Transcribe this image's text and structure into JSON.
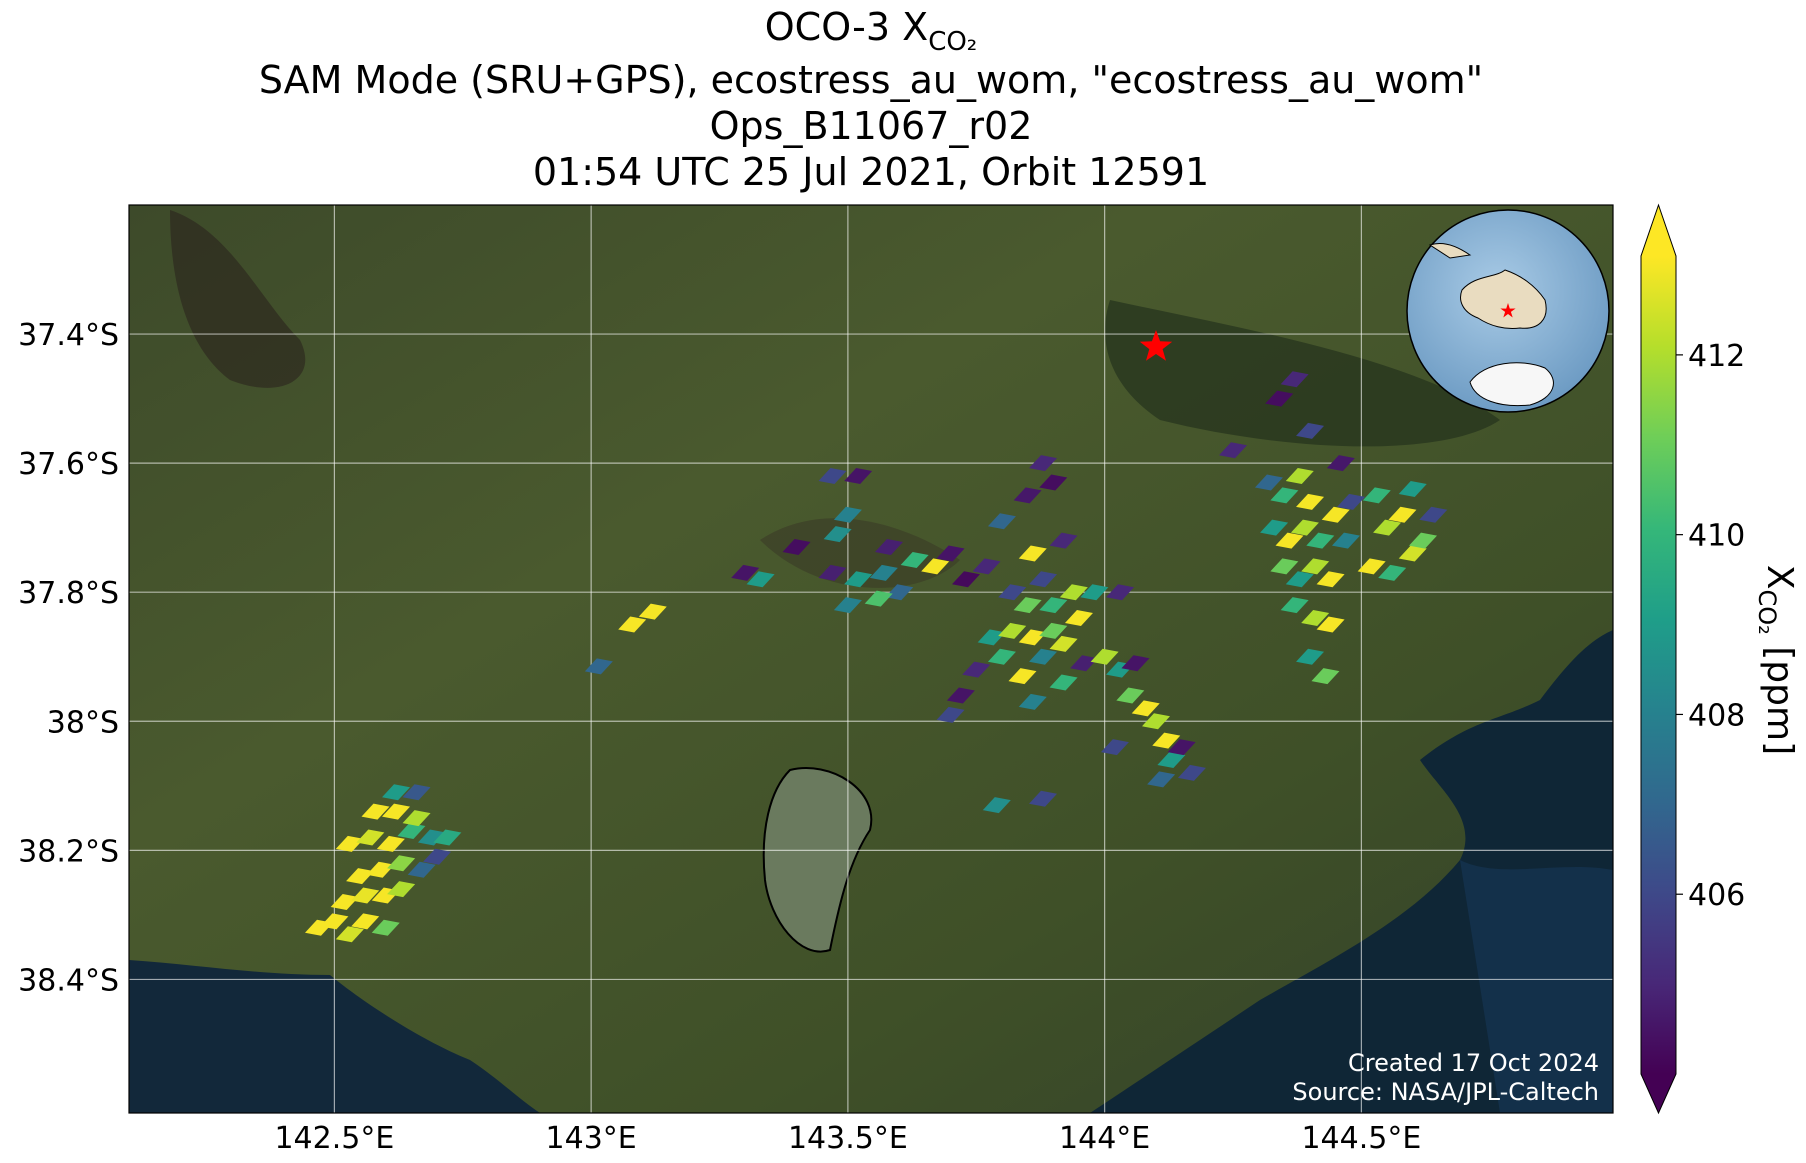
{
  "chart_data": {
    "type": "map",
    "title": {
      "text": "OCO-3 X",
      "subscript": "CO₂"
    },
    "subtitle": [
      "SAM Mode (SRU+GPS), ecostress_au_wom, \"ecostress_au_wom\"",
      "Ops_B11067_r02",
      "01:54 UTC 25 Jul 2021, Orbit 12591"
    ],
    "xlim": [
      142.1,
      144.99
    ],
    "ylim": [
      -38.607,
      -37.2
    ],
    "xticks": [
      {
        "value": 142.5,
        "label": "142.5°E"
      },
      {
        "value": 143,
        "label": "143°E"
      },
      {
        "value": 143.5,
        "label": "143.5°E"
      },
      {
        "value": 144,
        "label": "144°E"
      },
      {
        "value": 144.5,
        "label": "144.5°E"
      }
    ],
    "yticks": [
      {
        "value": -37.4,
        "label": "37.4°S"
      },
      {
        "value": -37.6,
        "label": "37.6°S"
      },
      {
        "value": -37.8,
        "label": "37.8°S"
      },
      {
        "value": -38,
        "label": "38°S"
      },
      {
        "value": -38.2,
        "label": "38.2°S"
      },
      {
        "value": -38.4,
        "label": "38.4°S"
      }
    ],
    "grid": true,
    "colormap": "viridis",
    "clim": [
      404,
      413.1
    ],
    "cticks": [
      406,
      408,
      410,
      412
    ],
    "colorbar_label": {
      "symbol": "X",
      "subscript": "CO₂",
      "units": "[ppm]"
    },
    "target": {
      "lon": 144.1,
      "lat": -37.42,
      "color": "#ff0000"
    },
    "soundings": {
      "lon": [
        142.47,
        142.5,
        142.53,
        142.56,
        142.6,
        142.52,
        142.56,
        142.6,
        142.63,
        142.55,
        142.59,
        142.63,
        142.67,
        142.7,
        142.53,
        142.57,
        142.61,
        142.65,
        142.69,
        142.58,
        142.62,
        142.66,
        142.62,
        142.66,
        142.72,
        143.08,
        143.12,
        143.015,
        143.3,
        143.33,
        143.47,
        143.52,
        143.5,
        143.48,
        143.4,
        143.47,
        143.52,
        143.57,
        143.6,
        143.63,
        143.67,
        143.7,
        143.58,
        143.73,
        143.77,
        143.5,
        143.56,
        143.8,
        143.85,
        143.88,
        143.9,
        143.82,
        143.86,
        143.92,
        143.78,
        143.82,
        143.86,
        143.9,
        143.8,
        143.84,
        143.88,
        143.92,
        143.95,
        143.85,
        143.9,
        143.94,
        143.98,
        143.88,
        143.75,
        143.72,
        143.86,
        143.92,
        143.96,
        143.7,
        144.03,
        144.0,
        144.03,
        144.06,
        144.05,
        144.08,
        144.1,
        144.12,
        144.13,
        144.15,
        144.11,
        144.02,
        144.17,
        143.79,
        143.88,
        144.25,
        144.34,
        144.37,
        144.32,
        144.35,
        144.38,
        144.4,
        144.33,
        144.36,
        144.39,
        144.42,
        144.45,
        144.35,
        144.38,
        144.41,
        144.44,
        144.37,
        144.41,
        144.44,
        144.4,
        144.43,
        144.47,
        144.48,
        144.46,
        144.53,
        144.55,
        144.58,
        144.6,
        144.52,
        144.56,
        144.6,
        144.62,
        144.64,
        144.4
      ],
      "lat": [
        -38.32,
        -38.31,
        -38.33,
        -38.31,
        -38.32,
        -38.28,
        -38.27,
        -38.27,
        -38.26,
        -38.24,
        -38.23,
        -38.22,
        -38.23,
        -38.21,
        -38.19,
        -38.18,
        -38.19,
        -38.17,
        -38.18,
        -38.14,
        -38.14,
        -38.15,
        -38.11,
        -38.11,
        -38.18,
        -37.85,
        -37.83,
        -37.915,
        -37.77,
        -37.78,
        -37.62,
        -37.62,
        -37.68,
        -37.71,
        -37.73,
        -37.77,
        -37.78,
        -37.77,
        -37.8,
        -37.75,
        -37.76,
        -37.74,
        -37.73,
        -37.78,
        -37.76,
        -37.82,
        -37.81,
        -37.69,
        -37.65,
        -37.6,
        -37.63,
        -37.8,
        -37.74,
        -37.72,
        -37.87,
        -37.86,
        -37.87,
        -37.86,
        -37.9,
        -37.93,
        -37.9,
        -37.88,
        -37.84,
        -37.82,
        -37.82,
        -37.8,
        -37.8,
        -37.78,
        -37.92,
        -37.96,
        -37.97,
        -37.94,
        -37.91,
        -37.99,
        -37.8,
        -37.9,
        -37.92,
        -37.91,
        -37.96,
        -37.98,
        -38.0,
        -38.03,
        -38.06,
        -38.04,
        -38.09,
        -38.04,
        -38.08,
        -38.13,
        -38.12,
        -37.58,
        -37.5,
        -37.47,
        -37.63,
        -37.65,
        -37.62,
        -37.66,
        -37.7,
        -37.72,
        -37.7,
        -37.72,
        -37.68,
        -37.76,
        -37.78,
        -37.76,
        -37.78,
        -37.82,
        -37.84,
        -37.85,
        -37.9,
        -37.93,
        -37.72,
        -37.66,
        -37.6,
        -37.65,
        -37.7,
        -37.68,
        -37.64,
        -37.76,
        -37.77,
        -37.74,
        -37.72,
        -37.68,
        -37.55
      ],
      "xco2": [
        413,
        413,
        412.5,
        413,
        411,
        413,
        412.8,
        413,
        412,
        413,
        413,
        411.5,
        407,
        406,
        413,
        412.5,
        413,
        410,
        408.5,
        413,
        413,
        412,
        409,
        406.5,
        409.5,
        413,
        413,
        407,
        404.5,
        409,
        406,
        404.5,
        408,
        408.5,
        404.3,
        404.8,
        409,
        408,
        407,
        410,
        413,
        404.5,
        404.8,
        404.2,
        405,
        408,
        410.5,
        407,
        404.6,
        405,
        404.3,
        406,
        413,
        405,
        409,
        412,
        413,
        411,
        410,
        413,
        408,
        412.5,
        413,
        411,
        410,
        412,
        409,
        406,
        405,
        404.5,
        408,
        410,
        404.8,
        406,
        405,
        412,
        409,
        404.5,
        411,
        413,
        412,
        413,
        409,
        404.5,
        407,
        406,
        406,
        408.5,
        406,
        405,
        404.3,
        405,
        407,
        410,
        412,
        413,
        409,
        413,
        412,
        410,
        413,
        411,
        409,
        412,
        413,
        410,
        412,
        413,
        409,
        411,
        408,
        406,
        404.6,
        410,
        412,
        413,
        409,
        413,
        410,
        412.5,
        411,
        406,
        406
      ]
    },
    "annotations": [
      "Created 17 Oct 2024",
      "Source: NASA/JPL-Caltech"
    ]
  }
}
